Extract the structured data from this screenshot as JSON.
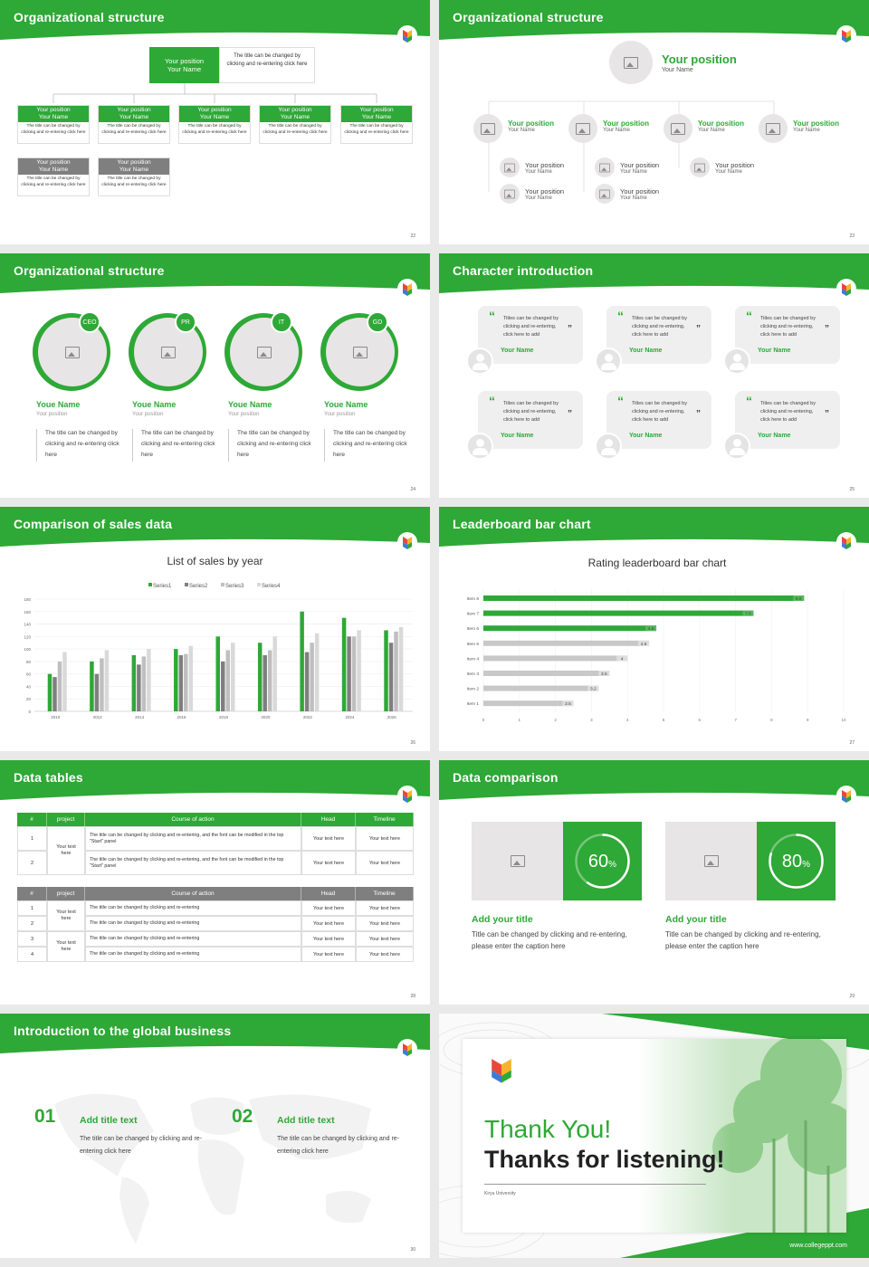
{
  "slides": {
    "s22": {
      "title": "Organizational structure",
      "page": "22",
      "top": {
        "pos": "Your position",
        "name": "Your Name",
        "desc": "The title can be changed by clicking and re-entering click here"
      },
      "box_pos": "Your position",
      "box_name": "Your Name",
      "box_desc": "The title can be changed by clicking and re-entering click here"
    },
    "s23": {
      "title": "Organizational structure",
      "page": "23",
      "pos": "Your position",
      "name": "Your Name"
    },
    "s24": {
      "title": "Organizational structure",
      "page": "24",
      "badges": [
        "CEO",
        "PR",
        "IT",
        "GD"
      ],
      "name": "Youe Name",
      "pos": "Your position",
      "desc": "The title can be changed by clicking and re-entering click here"
    },
    "s25": {
      "title": "Character introduction",
      "page": "25",
      "quote": "Titles can be changed by clicking and re-entering, click here to add",
      "name": "Your Name"
    },
    "s26": {
      "title": "Comparison of sales data",
      "page": "26",
      "chart_data": {
        "type": "bar",
        "title": "List of sales by year",
        "categories": [
          "2010",
          "2012",
          "2014",
          "2016",
          "2018",
          "2020",
          "2022",
          "2024",
          "2026"
        ],
        "series": [
          {
            "name": "Series1",
            "values": [
              60,
              80,
              90,
              100,
              120,
              110,
              160,
              150,
              130
            ]
          },
          {
            "name": "Series2",
            "values": [
              55,
              60,
              75,
              90,
              80,
              90,
              95,
              120,
              110
            ]
          },
          {
            "name": "Series3",
            "values": [
              80,
              85,
              88,
              92,
              98,
              98,
              110,
              120,
              128
            ]
          },
          {
            "name": "Series4",
            "values": [
              95,
              98,
              100,
              105,
              110,
              120,
              125,
              130,
              135
            ]
          }
        ],
        "yticks": [
          "180",
          "160",
          "140",
          "120",
          "100",
          "80",
          "60",
          "40",
          "20",
          "0"
        ],
        "ylim": [
          0,
          180
        ],
        "colors": [
          "#2ea836",
          "#7f7f7f",
          "#bfbfbf",
          "#d9d9d9"
        ],
        "legend": "top"
      }
    },
    "s27": {
      "title": "Leaderboard bar chart",
      "page": "27",
      "chart_data": {
        "type": "bar",
        "title": "Rating leaderboard bar chart",
        "categories": [
          "Item 8",
          "Item 7",
          "Item 6",
          "Item 5",
          "Item 4",
          "Item 3",
          "Item 2",
          "Item 1"
        ],
        "values": [
          8.9,
          7.5,
          4.8,
          4.6,
          4,
          3.5,
          3.2,
          2.5
        ],
        "green_count": 3,
        "xticks": [
          "0",
          "1",
          "2",
          "3",
          "4",
          "5",
          "6",
          "7",
          "8",
          "9",
          "10"
        ],
        "xlim": [
          0,
          10
        ]
      }
    },
    "s28": {
      "title": "Data tables",
      "page": "28",
      "head": [
        "#",
        "project",
        "Course of action",
        "Head",
        "Timeline"
      ],
      "t1": {
        "rows": [
          [
            "1",
            "The title can be changed by clicking and re-entering, and the font can be modified in the top \"Start\" panel"
          ],
          [
            "2",
            "The title can be changed by clicking and re-entering, and the font can be modified in the top \"Start\" panel"
          ]
        ]
      },
      "t2": {
        "rows": [
          [
            "1",
            "The title can be changed by clicking and re-entering"
          ],
          [
            "2",
            "The title can be changed by clicking and re-entering"
          ],
          [
            "3",
            "The title can be changed by clicking and re-entering"
          ],
          [
            "4",
            "The title can be changed by clicking and re-entering"
          ]
        ]
      },
      "proj": "Your text here",
      "head_val": "Your text here",
      "time_val": "Your text here"
    },
    "s29": {
      "title": "Data comparison",
      "page": "29",
      "items": [
        {
          "pct": 60,
          "label": "60",
          "title": "Add your title",
          "desc": "Title can be changed by clicking and re-entering, please enter the caption here"
        },
        {
          "pct": 80,
          "label": "80",
          "title": "Add your title",
          "desc": "Title can be changed by clicking and re-entering, please enter the caption here"
        }
      ],
      "unit": "%"
    },
    "s30": {
      "title": "Introduction to the global business",
      "page": "30",
      "items": [
        {
          "num": "01",
          "title": "Add title text",
          "desc": "The title can be changed by clicking and re-entering click here"
        },
        {
          "num": "02",
          "title": "Add title text",
          "desc": "The title can be changed by clicking and re-entering click here"
        }
      ]
    },
    "s31": {
      "thanks": "Thank You!",
      "sub": "Thanks for listening!",
      "uni": "Kiryu University",
      "url": "www.collegeppt.com"
    }
  },
  "colors": {
    "green": "#2ea836",
    "gray": "#7f7f7f",
    "light": "#e7e5e5"
  }
}
